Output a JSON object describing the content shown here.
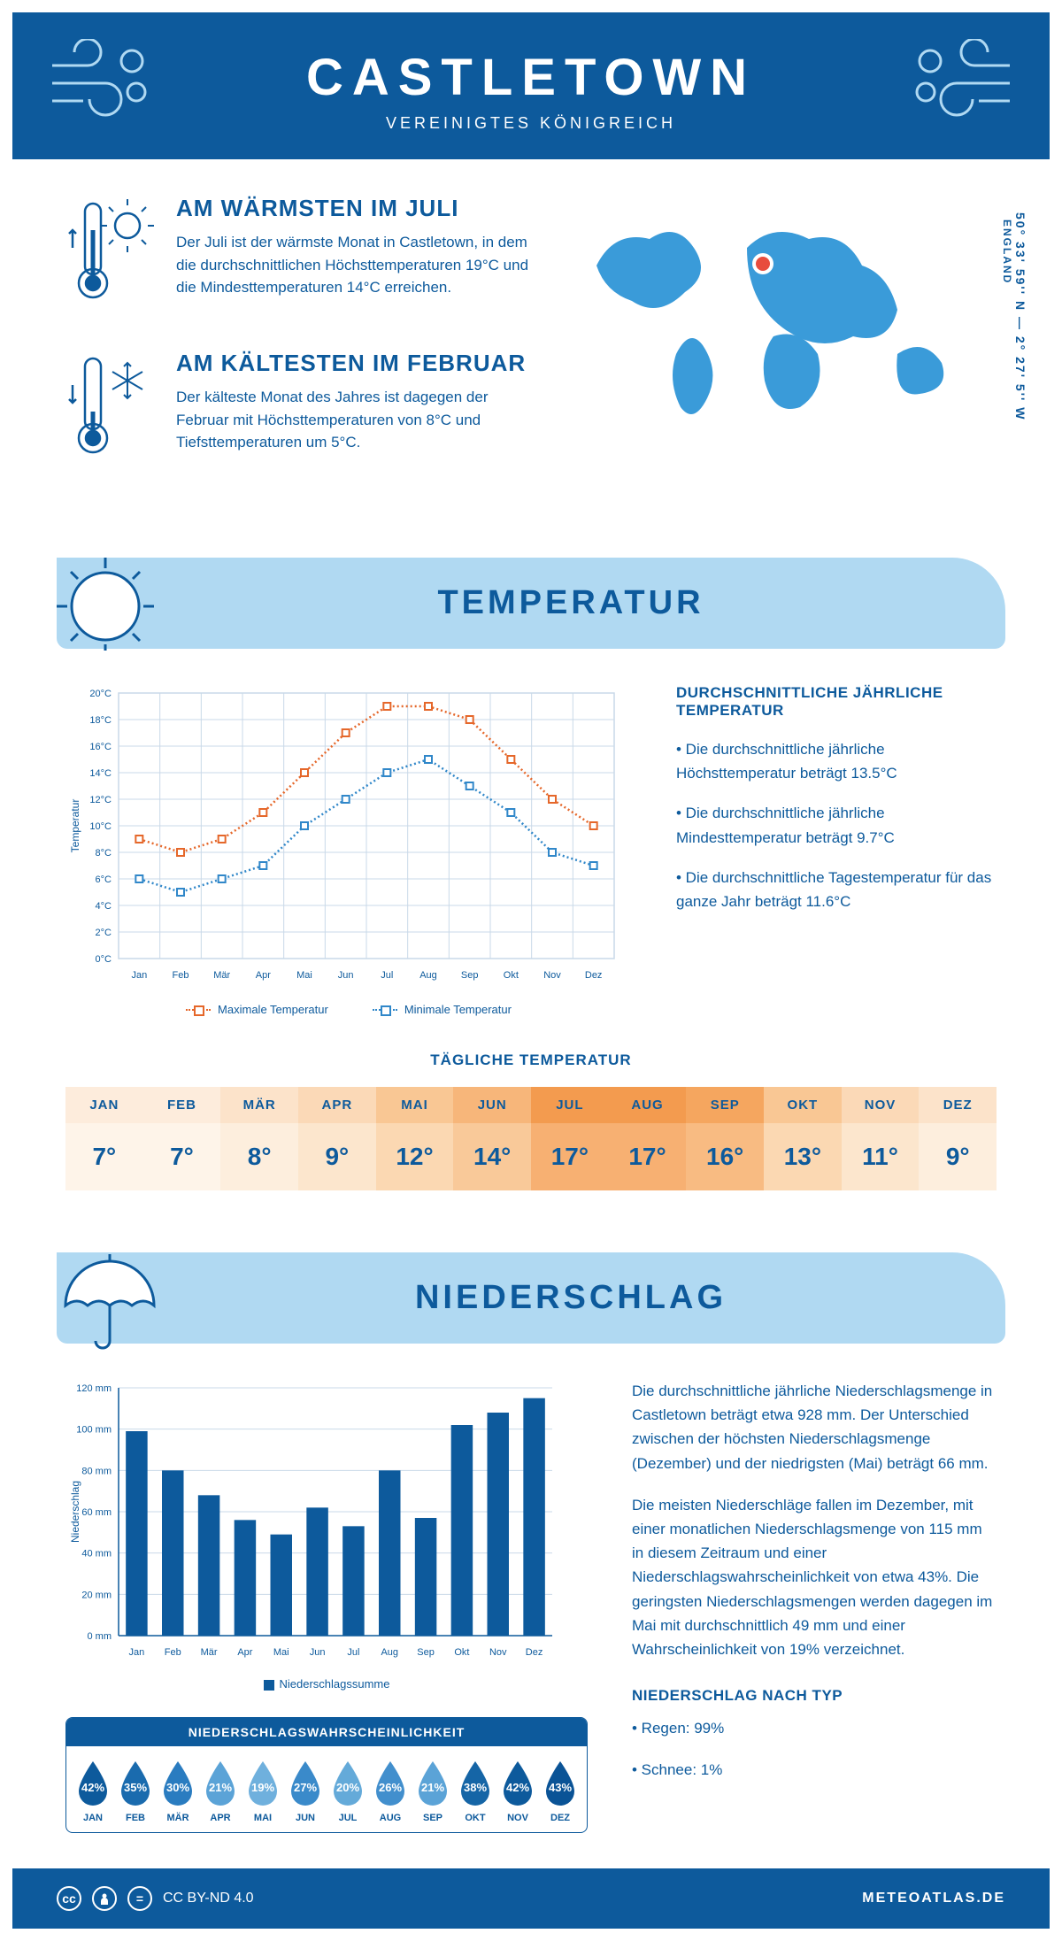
{
  "header": {
    "city": "CASTLETOWN",
    "country": "VEREINIGTES KÖNIGREICH"
  },
  "coords": {
    "line": "50° 33' 59'' N — 2° 27' 5'' W",
    "region": "ENGLAND"
  },
  "facts": {
    "warm": {
      "title": "AM WÄRMSTEN IM JULI",
      "text": "Der Juli ist der wärmste Monat in Castletown, in dem die durchschnittlichen Höchsttemperaturen 19°C und die Mindesttemperaturen 14°C erreichen."
    },
    "cold": {
      "title": "AM KÄLTESTEN IM FEBRUAR",
      "text": "Der kälteste Monat des Jahres ist dagegen der Februar mit Höchsttemperaturen von 8°C und Tiefsttemperaturen um 5°C."
    }
  },
  "temp_section": {
    "title": "TEMPERATUR"
  },
  "temp_chart": {
    "months": [
      "Jan",
      "Feb",
      "Mär",
      "Apr",
      "Mai",
      "Jun",
      "Jul",
      "Aug",
      "Sep",
      "Okt",
      "Nov",
      "Dez"
    ],
    "max": [
      9,
      8,
      9,
      11,
      14,
      17,
      19,
      19,
      18,
      15,
      12,
      10
    ],
    "min": [
      6,
      5,
      6,
      7,
      10,
      12,
      14,
      15,
      13,
      11,
      8,
      7
    ],
    "ylim": [
      0,
      20
    ],
    "ytick_step": 2,
    "max_color": "#e5672a",
    "min_color": "#3087c9",
    "grid_color": "#c9d9e8",
    "background": "#ffffff",
    "y_axis_title": "Temperatur",
    "legend_max": "Maximale Temperatur",
    "legend_min": "Minimale Temperatur"
  },
  "temp_text": {
    "title": "DURCHSCHNITTLICHE JÄHRLICHE TEMPERATUR",
    "p1": "• Die durchschnittliche jährliche Höchsttemperatur beträgt 13.5°C",
    "p2": "• Die durchschnittliche jährliche Mindesttemperatur beträgt 9.7°C",
    "p3": "• Die durchschnittliche Tagestemperatur für das ganze Jahr beträgt 11.6°C"
  },
  "daily": {
    "title": "TÄGLICHE TEMPERATUR",
    "months": [
      "JAN",
      "FEB",
      "MÄR",
      "APR",
      "MAI",
      "JUN",
      "JUL",
      "AUG",
      "SEP",
      "OKT",
      "NOV",
      "DEZ"
    ],
    "values": [
      "7°",
      "7°",
      "8°",
      "9°",
      "12°",
      "14°",
      "17°",
      "17°",
      "16°",
      "13°",
      "11°",
      "9°"
    ],
    "head_colors": [
      "#fdecdc",
      "#fdecdc",
      "#fce3ca",
      "#fbd9b7",
      "#f9c794",
      "#f7b67a",
      "#f39b4f",
      "#f39b4f",
      "#f5a65f",
      "#f9c794",
      "#fbd9b7",
      "#fce3ca"
    ],
    "body_colors": [
      "#fef4e9",
      "#fef4e9",
      "#fdeedd",
      "#fce6cd",
      "#fbd8b2",
      "#f9c999",
      "#f7b072",
      "#f7b072",
      "#f8bb82",
      "#fbd8b2",
      "#fce6cd",
      "#fdeedd"
    ]
  },
  "precip_section": {
    "title": "NIEDERSCHLAG"
  },
  "precip_chart": {
    "months": [
      "Jan",
      "Feb",
      "Mär",
      "Apr",
      "Mai",
      "Jun",
      "Jul",
      "Aug",
      "Sep",
      "Okt",
      "Nov",
      "Dez"
    ],
    "values": [
      99,
      80,
      68,
      56,
      49,
      62,
      53,
      80,
      57,
      102,
      108,
      115
    ],
    "ylim": [
      0,
      120
    ],
    "ytick_step": 20,
    "bar_color": "#0d5a9c",
    "grid_color": "#c9d9e8",
    "y_axis_title": "Niederschlag",
    "legend": "Niederschlagssumme"
  },
  "precip_text": {
    "p1": "Die durchschnittliche jährliche Niederschlagsmenge in Castletown beträgt etwa 928 mm. Der Unterschied zwischen der höchsten Niederschlagsmenge (Dezember) und der niedrigsten (Mai) beträgt 66 mm.",
    "p2": "Die meisten Niederschläge fallen im Dezember, mit einer monatlichen Niederschlagsmenge von 115 mm in diesem Zeitraum und einer Niederschlagswahrscheinlichkeit von etwa 43%. Die geringsten Niederschlagsmengen werden dagegen im Mai mit durchschnittlich 49 mm und einer Wahrscheinlichkeit von 19% verzeichnet.",
    "type_title": "NIEDERSCHLAG NACH TYP",
    "type1": "• Regen: 99%",
    "type2": "• Schnee: 1%"
  },
  "prob": {
    "title": "NIEDERSCHLAGSWAHRSCHEINLICHKEIT",
    "months": [
      "JAN",
      "FEB",
      "MÄR",
      "APR",
      "MAI",
      "JUN",
      "JUL",
      "AUG",
      "SEP",
      "OKT",
      "NOV",
      "DEZ"
    ],
    "values": [
      "42%",
      "35%",
      "30%",
      "21%",
      "19%",
      "27%",
      "20%",
      "26%",
      "21%",
      "38%",
      "42%",
      "43%"
    ],
    "colors": [
      "#0d5a9c",
      "#1a6bae",
      "#2a7cc0",
      "#5ba3d7",
      "#6fb0dd",
      "#3a8aca",
      "#64aad9",
      "#428fcd",
      "#5ba3d7",
      "#1565a6",
      "#0d5a9c",
      "#0a5396"
    ]
  },
  "footer": {
    "license": "CC BY-ND 4.0",
    "site": "METEOATLAS.DE"
  }
}
